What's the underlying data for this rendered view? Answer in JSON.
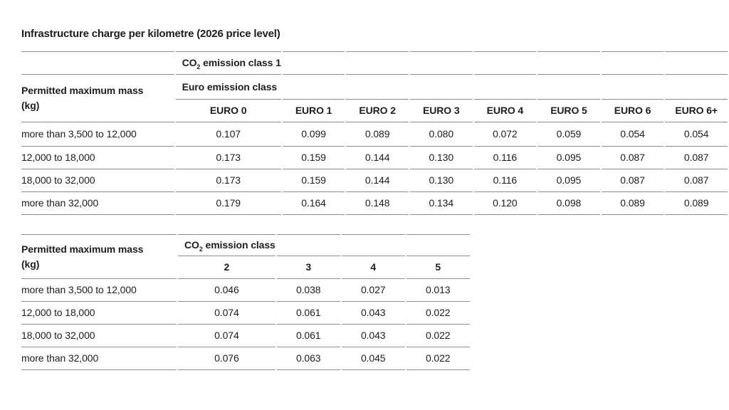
{
  "title": "Infrastructure charge per kilometre (2026 price level)",
  "colors": {
    "text": "#1d1d1d",
    "rule": "#8a8a8a",
    "background": "#ffffff"
  },
  "tables": {
    "co2_class1": {
      "co2_header": {
        "prefix": "CO",
        "sub": "2",
        "suffix": " emission class 1"
      },
      "mass_header": "Permitted maximum mass (kg)",
      "group_header": "Euro emission class",
      "columns": [
        "EURO 0",
        "EURO 1",
        "EURO 2",
        "EURO 3",
        "EURO 4",
        "EURO 5",
        "EURO 6",
        "EURO 6+"
      ],
      "rows": [
        {
          "label": "more than 3,500 to 12,000",
          "values": [
            "0.107",
            "0.099",
            "0.089",
            "0.080",
            "0.072",
            "0.059",
            "0.054",
            "0.054"
          ]
        },
        {
          "label": "12,000 to 18,000",
          "values": [
            "0.173",
            "0.159",
            "0.144",
            "0.130",
            "0.116",
            "0.095",
            "0.087",
            "0.087"
          ]
        },
        {
          "label": "18,000 to 32,000",
          "values": [
            "0.173",
            "0.159",
            "0.144",
            "0.130",
            "0.116",
            "0.095",
            "0.087",
            "0.087"
          ]
        },
        {
          "label": "more than 32,000",
          "values": [
            "0.179",
            "0.164",
            "0.148",
            "0.134",
            "0.120",
            "0.098",
            "0.089",
            "0.089"
          ]
        }
      ]
    },
    "co2_classes": {
      "group_header": {
        "prefix": "CO",
        "sub": "2",
        "suffix": " emission class"
      },
      "mass_header": "Permitted maximum mass (kg)",
      "columns": [
        "2",
        "3",
        "4",
        "5"
      ],
      "rows": [
        {
          "label": "more than 3,500 to 12,000",
          "values": [
            "0.046",
            "0.038",
            "0.027",
            "0.013"
          ]
        },
        {
          "label": "12,000 to 18,000",
          "values": [
            "0.074",
            "0.061",
            "0.043",
            "0.022"
          ]
        },
        {
          "label": "18,000 to 32,000",
          "values": [
            "0.074",
            "0.061",
            "0.043",
            "0.022"
          ]
        },
        {
          "label": "more than 32,000",
          "values": [
            "0.076",
            "0.063",
            "0.045",
            "0.022"
          ]
        }
      ]
    }
  }
}
